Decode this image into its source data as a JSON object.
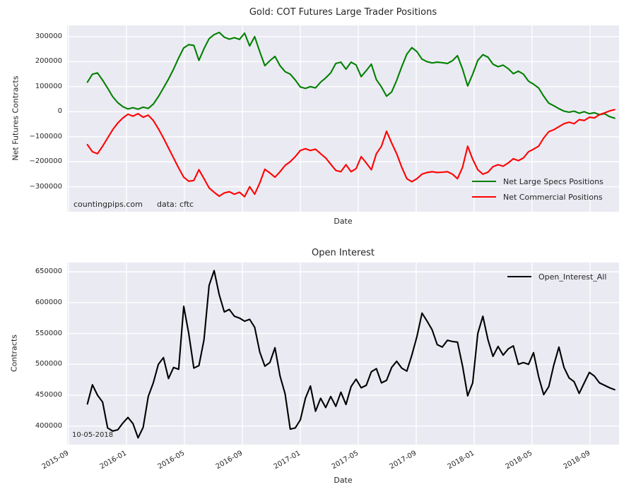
{
  "figure": {
    "background": "#ffffff",
    "plot_background": "#eaeaf2",
    "grid_color": "#ffffff",
    "text_color": "#262626"
  },
  "top_chart": {
    "title": "Gold: COT Futures Large Trader Positions",
    "ylabel": "Net Futures Contracts",
    "xlabel": "Date",
    "watermark": "countingpips.com",
    "source_note": "data: cftc",
    "legend": [
      {
        "label": "Net Large Specs Positions",
        "color": "#008000"
      },
      {
        "label": "Net Commercial Positions",
        "color": "#ff0000"
      }
    ]
  },
  "bottom_chart": {
    "title": "Open Interest",
    "ylabel": "Contracts",
    "xlabel": "Date",
    "annotation": "10-05-2018",
    "legend": [
      {
        "label": "Open_Interest_All",
        "color": "#000000"
      }
    ]
  },
  "chart_data": [
    {
      "type": "line",
      "title": "Gold: COT Futures Large Trader Positions",
      "xlabel": "Date",
      "ylabel": "Net Futures Contracts",
      "grid": true,
      "legend_position": "lower right",
      "ylim": [
        -400000,
        345000
      ],
      "y_ticks": [
        300000,
        200000,
        100000,
        0,
        -100000,
        -200000,
        -300000
      ],
      "y_tick_labels": [
        "300000",
        "200000",
        "100000",
        "0",
        "−100000",
        "−200000",
        "−300000"
      ],
      "x_tick_months": [
        0,
        4,
        8,
        12,
        16,
        20,
        24,
        28,
        32,
        36
      ],
      "x_tick_labels": [],
      "x_start_month": 1.3,
      "x_step_month": 0.35,
      "annotations": [
        "countingpips.com",
        "data: cftc"
      ],
      "series": [
        {
          "name": "Net Large Specs Positions",
          "color": "#008000",
          "values": [
            118000,
            150000,
            155000,
            126000,
            94000,
            60000,
            36000,
            20000,
            11000,
            16000,
            10000,
            18000,
            13000,
            30000,
            60000,
            95000,
            130000,
            170000,
            215000,
            255000,
            268000,
            265000,
            205000,
            252000,
            292000,
            308000,
            317000,
            298000,
            290000,
            296000,
            289000,
            314000,
            263000,
            300000,
            240000,
            184000,
            204000,
            221000,
            184000,
            160000,
            150000,
            127000,
            99000,
            93000,
            100000,
            95000,
            118000,
            135000,
            155000,
            193000,
            198000,
            170000,
            198000,
            187000,
            140000,
            164000,
            190000,
            128000,
            99000,
            62000,
            79000,
            125000,
            180000,
            230000,
            256000,
            240000,
            210000,
            200000,
            195000,
            198000,
            196000,
            193000,
            204000,
            224000,
            170000,
            103000,
            150000,
            205000,
            228000,
            218000,
            190000,
            180000,
            186000,
            172000,
            152000,
            162000,
            150000,
            122000,
            110000,
            95000,
            62000,
            34000,
            24000,
            12000,
            2000,
            -2000,
            2000,
            -6000,
            0,
            -8000,
            -4000,
            -12000,
            -8000,
            -20000,
            -26000
          ]
        },
        {
          "name": "Net Commercial Positions",
          "color": "#ff0000",
          "values": [
            -132000,
            -160000,
            -168000,
            -138000,
            -105000,
            -72000,
            -45000,
            -25000,
            -10000,
            -18000,
            -8000,
            -22000,
            -14000,
            -35000,
            -68000,
            -105000,
            -145000,
            -185000,
            -225000,
            -262000,
            -278000,
            -275000,
            -232000,
            -268000,
            -305000,
            -322000,
            -338000,
            -325000,
            -320000,
            -330000,
            -322000,
            -340000,
            -300000,
            -330000,
            -285000,
            -230000,
            -245000,
            -262000,
            -240000,
            -215000,
            -200000,
            -180000,
            -155000,
            -148000,
            -155000,
            -150000,
            -168000,
            -185000,
            -210000,
            -235000,
            -240000,
            -212000,
            -240000,
            -228000,
            -180000,
            -205000,
            -232000,
            -168000,
            -138000,
            -78000,
            -125000,
            -168000,
            -222000,
            -268000,
            -280000,
            -268000,
            -250000,
            -243000,
            -240000,
            -243000,
            -242000,
            -240000,
            -250000,
            -268000,
            -222000,
            -138000,
            -190000,
            -232000,
            -250000,
            -242000,
            -220000,
            -212000,
            -218000,
            -205000,
            -188000,
            -196000,
            -185000,
            -160000,
            -150000,
            -138000,
            -105000,
            -80000,
            -72000,
            -60000,
            -48000,
            -42000,
            -48000,
            -32000,
            -35000,
            -22000,
            -25000,
            -12000,
            -5000,
            3000,
            8000
          ]
        }
      ]
    },
    {
      "type": "line",
      "title": "Open Interest",
      "xlabel": "Date",
      "ylabel": "Contracts",
      "grid": true,
      "legend_position": "upper right",
      "ylim": [
        370000,
        665000
      ],
      "y_ticks": [
        650000,
        600000,
        550000,
        500000,
        450000,
        400000
      ],
      "y_tick_labels": [
        "650000",
        "600000",
        "550000",
        "500000",
        "450000",
        "400000"
      ],
      "x_tick_months": [
        0,
        4,
        8,
        12,
        16,
        20,
        24,
        28,
        32,
        36
      ],
      "x_tick_labels": [
        "2015-09",
        "2016-01",
        "2016-05",
        "2016-09",
        "2017-01",
        "2017-05",
        "2017-09",
        "2018-01",
        "2018-05",
        "2018-09"
      ],
      "x_start_month": 1.3,
      "x_step_month": 0.35,
      "annotations": [
        "10-05-2018"
      ],
      "series": [
        {
          "name": "Open_Interest_All",
          "color": "#000000",
          "values": [
            436000,
            467000,
            450000,
            439000,
            397000,
            392000,
            394000,
            405000,
            414000,
            404000,
            381000,
            398000,
            448000,
            470000,
            500000,
            511000,
            477000,
            495000,
            492000,
            594000,
            550000,
            494000,
            498000,
            540000,
            628000,
            652000,
            613000,
            585000,
            589000,
            578000,
            575000,
            570000,
            573000,
            560000,
            520000,
            497000,
            503000,
            527000,
            481000,
            452000,
            395000,
            397000,
            410000,
            445000,
            465000,
            424000,
            445000,
            430000,
            448000,
            432000,
            455000,
            435000,
            464000,
            476000,
            462000,
            466000,
            488000,
            493000,
            470000,
            474000,
            495000,
            505000,
            494000,
            489000,
            515000,
            545000,
            583000,
            570000,
            556000,
            532000,
            528000,
            539000,
            537000,
            536000,
            497000,
            449000,
            470000,
            550000,
            578000,
            540000,
            513000,
            529000,
            515000,
            525000,
            530000,
            500000,
            503000,
            500000,
            519000,
            480000,
            451000,
            464000,
            499000,
            528000,
            495000,
            478000,
            472000,
            453000,
            470000,
            487000,
            481000,
            470000,
            466000,
            462000,
            459000
          ]
        }
      ]
    }
  ]
}
